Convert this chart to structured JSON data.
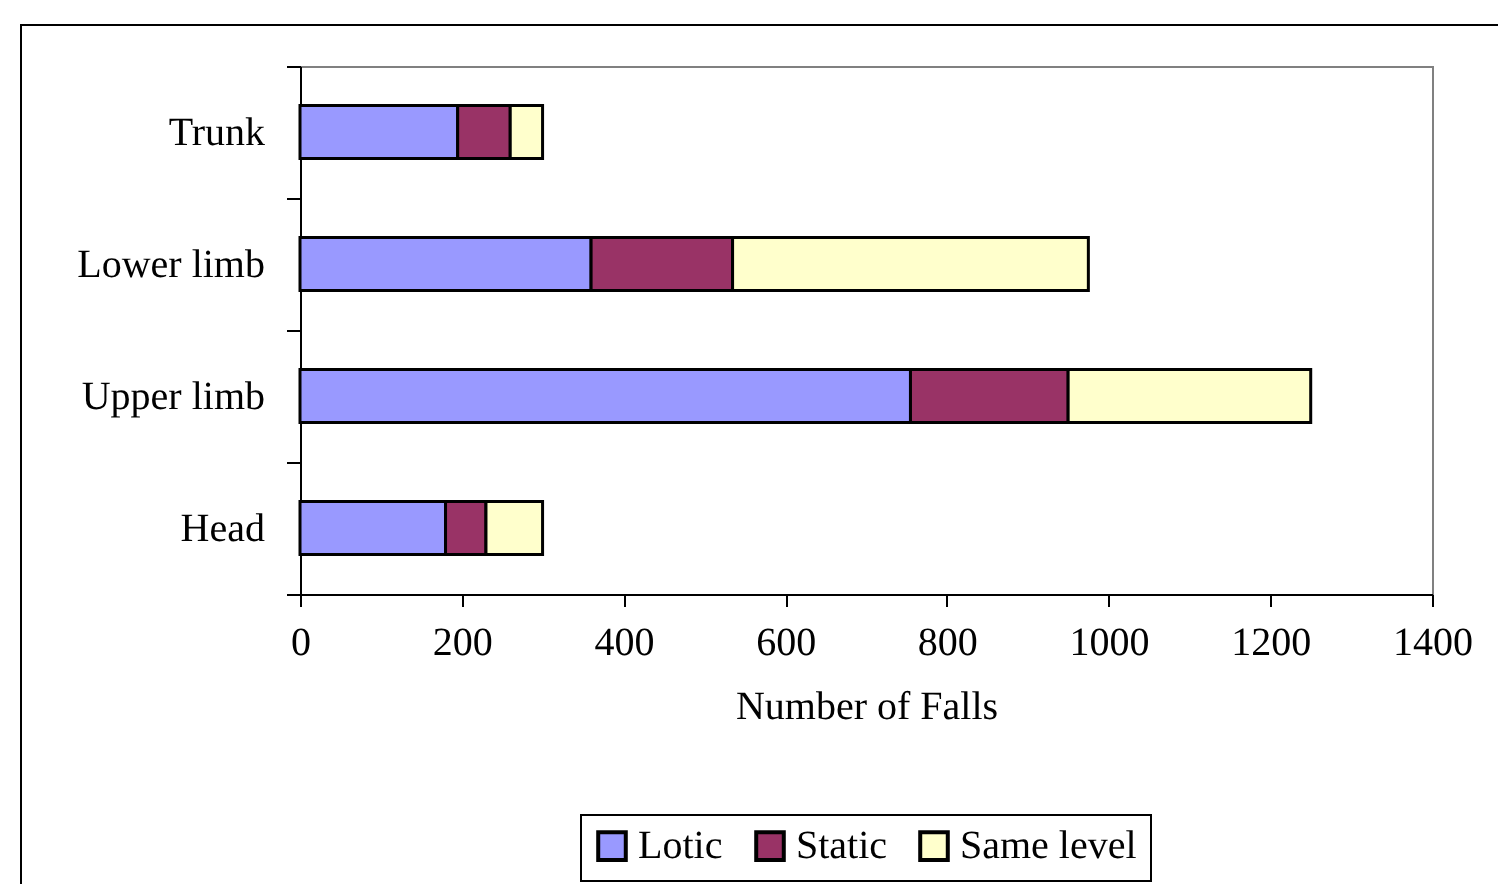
{
  "chart_data": {
    "type": "bar",
    "orientation": "horizontal",
    "stacked": true,
    "xlabel": "Number of Falls",
    "categories": [
      "Trunk",
      "Lower limb",
      "Upper limb",
      "Head"
    ],
    "series": [
      {
        "name": "Lotic",
        "color": "#9999ff",
        "values": [
          195,
          360,
          755,
          180
        ]
      },
      {
        "name": "Static",
        "color": "#993366",
        "values": [
          65,
          175,
          195,
          50
        ]
      },
      {
        "name": "Same level",
        "color": "#ffffcc",
        "values": [
          40,
          440,
          300,
          70
        ]
      }
    ],
    "xlim": [
      0,
      1400
    ],
    "xticks": [
      0,
      200,
      400,
      600,
      800,
      1000,
      1200,
      1400
    ],
    "legend": "bottom"
  }
}
